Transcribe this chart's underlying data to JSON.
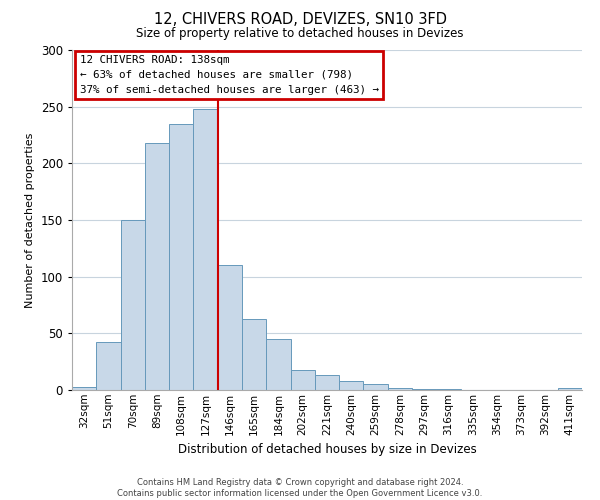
{
  "title": "12, CHIVERS ROAD, DEVIZES, SN10 3FD",
  "subtitle": "Size of property relative to detached houses in Devizes",
  "xlabel": "Distribution of detached houses by size in Devizes",
  "ylabel": "Number of detached properties",
  "categories": [
    "32sqm",
    "51sqm",
    "70sqm",
    "89sqm",
    "108sqm",
    "127sqm",
    "146sqm",
    "165sqm",
    "184sqm",
    "202sqm",
    "221sqm",
    "240sqm",
    "259sqm",
    "278sqm",
    "297sqm",
    "316sqm",
    "335sqm",
    "354sqm",
    "373sqm",
    "392sqm",
    "411sqm"
  ],
  "values": [
    3,
    42,
    150,
    218,
    235,
    248,
    110,
    63,
    45,
    18,
    13,
    8,
    5,
    2,
    1,
    1,
    0,
    0,
    0,
    0,
    2
  ],
  "bar_color": "#c8d8e8",
  "bar_edge_color": "#6699bb",
  "vline_color": "#cc0000",
  "vline_pos": 5.5,
  "annotation_title": "12 CHIVERS ROAD: 138sqm",
  "annotation_line1": "← 63% of detached houses are smaller (798)",
  "annotation_line2": "37% of semi-detached houses are larger (463) →",
  "annotation_box_color": "#cc0000",
  "ylim": [
    0,
    300
  ],
  "yticks": [
    0,
    50,
    100,
    150,
    200,
    250,
    300
  ],
  "footer1": "Contains HM Land Registry data © Crown copyright and database right 2024.",
  "footer2": "Contains public sector information licensed under the Open Government Licence v3.0.",
  "bg_color": "#ffffff",
  "grid_color": "#c8d4de"
}
